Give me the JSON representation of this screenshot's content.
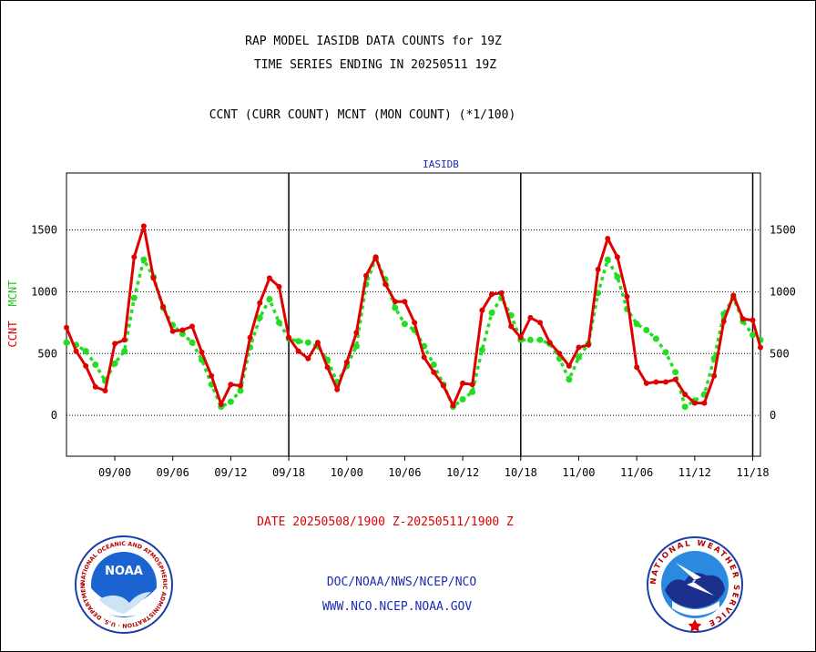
{
  "header": {
    "title_line1": "RAP MODEL IASIDB DATA COUNTS for 19Z",
    "title_line2": "TIME SERIES ENDING IN 20250511 19Z",
    "subtitle": "CCNT (CURR COUNT) MCNT (MON COUNT) (*1/100)"
  },
  "footer": {
    "date_range": "DATE 20250508/1900 Z-20250511/1900 Z",
    "org_path": "DOC/NOAA/NWS/NCEP/NCO",
    "website": "WWW.NCO.NCEP.NOAA.GOV"
  },
  "logos": {
    "noaa_word": "NOAA",
    "noaa_ring_text": "NATIONAL OCEANIC AND ATMOSPHERIC ADMINISTRATION · U.S. DEPARTMENT OF COMMERCE",
    "nws_ring_text": "NATIONAL WEATHER SERVICE"
  },
  "colors": {
    "ccnt": "#e00000",
    "mcnt": "#22dd22",
    "footer_text": "#1f2bb3",
    "chart_label": "#1f2bb3"
  },
  "chart_data": {
    "type": "line",
    "title": "IASIDB",
    "ylabel_ccnt": "CCNT",
    "ylabel_mcnt": "MCNT",
    "ylim": [
      -330,
      1960
    ],
    "yticks": [
      0,
      500,
      1000,
      1500
    ],
    "grid": true,
    "xlim": [
      0,
      71.8
    ],
    "xticks": [
      {
        "label": "09/00",
        "x": 5
      },
      {
        "label": "09/06",
        "x": 11
      },
      {
        "label": "09/12",
        "x": 17
      },
      {
        "label": "09/18",
        "x": 23
      },
      {
        "label": "10/00",
        "x": 29
      },
      {
        "label": "10/06",
        "x": 35
      },
      {
        "label": "10/12",
        "x": 41
      },
      {
        "label": "10/18",
        "x": 47
      },
      {
        "label": "11/00",
        "x": 53
      },
      {
        "label": "11/06",
        "x": 59
      },
      {
        "label": "11/12",
        "x": 65
      },
      {
        "label": "11/18",
        "x": 71
      }
    ],
    "day_dividers": [
      23,
      47,
      71
    ],
    "series": [
      {
        "name": "CCNT",
        "points": [
          [
            0,
            710
          ],
          [
            1,
            520
          ],
          [
            2,
            400
          ],
          [
            3,
            230
          ],
          [
            4,
            200
          ],
          [
            5,
            580
          ],
          [
            6,
            610
          ],
          [
            7,
            1280
          ],
          [
            8,
            1530
          ],
          [
            9,
            1110
          ],
          [
            10,
            880
          ],
          [
            11,
            680
          ],
          [
            12,
            690
          ],
          [
            13,
            720
          ],
          [
            14,
            510
          ],
          [
            15,
            320
          ],
          [
            16,
            90
          ],
          [
            17,
            250
          ],
          [
            18,
            240
          ],
          [
            19,
            630
          ],
          [
            20,
            910
          ],
          [
            21,
            1110
          ],
          [
            22,
            1040
          ],
          [
            23,
            630
          ],
          [
            24,
            520
          ],
          [
            25,
            460
          ],
          [
            26,
            590
          ],
          [
            27,
            390
          ],
          [
            28,
            210
          ],
          [
            29,
            430
          ],
          [
            30,
            670
          ],
          [
            31,
            1130
          ],
          [
            32,
            1280
          ],
          [
            33,
            1060
          ],
          [
            34,
            920
          ],
          [
            35,
            920
          ],
          [
            36,
            750
          ],
          [
            37,
            470
          ],
          [
            38,
            350
          ],
          [
            39,
            240
          ],
          [
            40,
            80
          ],
          [
            41,
            260
          ],
          [
            42,
            250
          ],
          [
            43,
            850
          ],
          [
            44,
            980
          ],
          [
            45,
            990
          ],
          [
            46,
            720
          ],
          [
            47,
            630
          ],
          [
            48,
            790
          ],
          [
            49,
            750
          ],
          [
            50,
            590
          ],
          [
            51,
            500
          ],
          [
            52,
            400
          ],
          [
            53,
            550
          ],
          [
            54,
            570
          ],
          [
            55,
            1180
          ],
          [
            56,
            1430
          ],
          [
            57,
            1280
          ],
          [
            58,
            960
          ],
          [
            59,
            390
          ],
          [
            60,
            260
          ],
          [
            61,
            270
          ],
          [
            62,
            270
          ],
          [
            63,
            290
          ],
          [
            64,
            170
          ],
          [
            65,
            100
          ],
          [
            66,
            100
          ],
          [
            67,
            320
          ],
          [
            68,
            760
          ],
          [
            69,
            970
          ],
          [
            70,
            780
          ],
          [
            71,
            770
          ],
          [
            71.8,
            550
          ]
        ]
      },
      {
        "name": "MCNT",
        "points": [
          [
            0,
            590
          ],
          [
            1,
            570
          ],
          [
            2,
            520
          ],
          [
            3,
            410
          ],
          [
            4,
            280
          ],
          [
            5,
            420
          ],
          [
            6,
            520
          ],
          [
            7,
            950
          ],
          [
            8,
            1260
          ],
          [
            9,
            1120
          ],
          [
            10,
            870
          ],
          [
            11,
            730
          ],
          [
            12,
            660
          ],
          [
            13,
            590
          ],
          [
            14,
            450
          ],
          [
            15,
            250
          ],
          [
            16,
            70
          ],
          [
            17,
            110
          ],
          [
            18,
            200
          ],
          [
            19,
            550
          ],
          [
            20,
            790
          ],
          [
            21,
            940
          ],
          [
            22,
            750
          ],
          [
            23,
            620
          ],
          [
            24,
            600
          ],
          [
            25,
            590
          ],
          [
            26,
            560
          ],
          [
            27,
            450
          ],
          [
            28,
            270
          ],
          [
            29,
            400
          ],
          [
            30,
            560
          ],
          [
            31,
            1060
          ],
          [
            32,
            1270
          ],
          [
            33,
            1100
          ],
          [
            34,
            870
          ],
          [
            35,
            740
          ],
          [
            36,
            690
          ],
          [
            37,
            560
          ],
          [
            38,
            410
          ],
          [
            39,
            250
          ],
          [
            40,
            70
          ],
          [
            41,
            130
          ],
          [
            42,
            190
          ],
          [
            43,
            530
          ],
          [
            44,
            830
          ],
          [
            45,
            950
          ],
          [
            46,
            810
          ],
          [
            47,
            610
          ],
          [
            48,
            610
          ],
          [
            49,
            610
          ],
          [
            50,
            580
          ],
          [
            51,
            460
          ],
          [
            52,
            290
          ],
          [
            53,
            470
          ],
          [
            54,
            580
          ],
          [
            55,
            990
          ],
          [
            56,
            1260
          ],
          [
            57,
            1120
          ],
          [
            58,
            860
          ],
          [
            59,
            740
          ],
          [
            60,
            690
          ],
          [
            61,
            620
          ],
          [
            62,
            510
          ],
          [
            63,
            350
          ],
          [
            64,
            70
          ],
          [
            65,
            120
          ],
          [
            66,
            170
          ],
          [
            67,
            460
          ],
          [
            68,
            820
          ],
          [
            69,
            950
          ],
          [
            70,
            760
          ],
          [
            71,
            650
          ],
          [
            71.8,
            610
          ]
        ]
      }
    ]
  }
}
